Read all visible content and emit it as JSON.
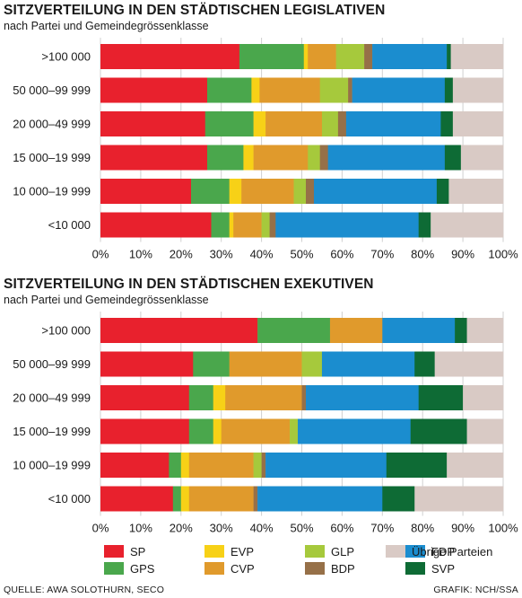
{
  "colors": {
    "SP": "#e8212d",
    "GPS": "#4aa74c",
    "EVP": "#f7d117",
    "CVP": "#e09a2c",
    "GLP": "#a6c93c",
    "BDP": "#967048",
    "FDP": "#1b8dcf",
    "SVP": "#0e6b35",
    "Übrige Parteien": "#d9cac5"
  },
  "legend": {
    "items": [
      {
        "key": "SP",
        "label": "SP"
      },
      {
        "key": "GPS",
        "label": "GPS"
      },
      {
        "key": "EVP",
        "label": "EVP"
      },
      {
        "key": "CVP",
        "label": "CVP"
      },
      {
        "key": "GLP",
        "label": "GLP"
      },
      {
        "key": "BDP",
        "label": "BDP"
      },
      {
        "key": "FDP",
        "label": "FDP"
      },
      {
        "key": "SVP",
        "label": "SVP"
      },
      {
        "key": "Übrige Parteien",
        "label": "Übrige Parteien"
      }
    ]
  },
  "footer": {
    "source": "QUELLE: AWA SOLOTHURN, SECO",
    "credit": "GRAFIK: NCH/SSA"
  },
  "chart_data": [
    {
      "type": "bar",
      "stacked": true,
      "orientation": "horizontal",
      "title": "SITZVERTEILUNG IN DEN STÄDTISCHEN LEGISLATIVEN",
      "subtitle": "nach Partei und Gemeindegrössenklasse",
      "xlim": [
        0,
        100
      ],
      "xticks": [
        "0%",
        "10%",
        "20%",
        "30%",
        "40%",
        "50%",
        "60%",
        "70%",
        "80%",
        "90%",
        "100%"
      ],
      "grid": true,
      "categories": [
        ">100 000",
        "50 000–99 999",
        "20 000–49 999",
        "15 000–19 999",
        "10 000–19 999",
        "<10 000"
      ],
      "series": [
        {
          "name": "SP",
          "values": [
            34.5,
            26.5,
            26.0,
            26.5,
            22.5,
            27.5
          ]
        },
        {
          "name": "GPS",
          "values": [
            16.0,
            11.0,
            12.0,
            9.0,
            9.5,
            4.5
          ]
        },
        {
          "name": "EVP",
          "values": [
            1.0,
            2.0,
            3.0,
            2.5,
            3.0,
            1.0
          ]
        },
        {
          "name": "CVP",
          "values": [
            7.0,
            15.0,
            14.0,
            13.5,
            13.0,
            7.0
          ]
        },
        {
          "name": "GLP",
          "values": [
            7.0,
            7.0,
            4.0,
            3.0,
            3.0,
            2.0
          ]
        },
        {
          "name": "BDP",
          "values": [
            2.0,
            1.0,
            2.0,
            2.0,
            2.0,
            1.5
          ]
        },
        {
          "name": "FDP",
          "values": [
            18.5,
            23.0,
            23.5,
            29.0,
            30.5,
            35.5
          ]
        },
        {
          "name": "SVP",
          "values": [
            1.0,
            2.0,
            3.0,
            4.0,
            3.0,
            3.0
          ]
        },
        {
          "name": "Übrige Parteien",
          "values": [
            13.0,
            12.5,
            12.5,
            10.5,
            13.5,
            18.0
          ]
        }
      ]
    },
    {
      "type": "bar",
      "stacked": true,
      "orientation": "horizontal",
      "title": "SITZVERTEILUNG IN DEN STÄDTISCHEN EXEKUTIVEN",
      "subtitle": "nach Partei und Gemeindegrössenklasse",
      "xlim": [
        0,
        100
      ],
      "xticks": [
        "0%",
        "10%",
        "20%",
        "30%",
        "40%",
        "50%",
        "60%",
        "70%",
        "80%",
        "90%",
        "100%"
      ],
      "grid": true,
      "categories": [
        ">100 000",
        "50 000–99 999",
        "20 000–49 999",
        "15 000–19 999",
        "10 000–19 999",
        "<10 000"
      ],
      "series": [
        {
          "name": "SP",
          "values": [
            39.0,
            23.0,
            22.0,
            22.0,
            17.0,
            18.0
          ]
        },
        {
          "name": "GPS",
          "values": [
            18.0,
            9.0,
            6.0,
            6.0,
            3.0,
            2.0
          ]
        },
        {
          "name": "EVP",
          "values": [
            0,
            0,
            3.0,
            2.0,
            2.0,
            2.0
          ]
        },
        {
          "name": "CVP",
          "values": [
            13.0,
            18.0,
            19.0,
            17.0,
            16.0,
            16.0
          ]
        },
        {
          "name": "GLP",
          "values": [
            0,
            5.0,
            0,
            2.0,
            2.0,
            0
          ]
        },
        {
          "name": "BDP",
          "values": [
            0,
            0,
            1.0,
            0,
            1.0,
            1.0
          ]
        },
        {
          "name": "FDP",
          "values": [
            18.0,
            23.0,
            28.0,
            28.0,
            30.0,
            31.0
          ]
        },
        {
          "name": "SVP",
          "values": [
            3.0,
            5.0,
            11.0,
            14.0,
            15.0,
            8.0
          ]
        },
        {
          "name": "Übrige Parteien",
          "values": [
            9.0,
            17.0,
            10.0,
            9.0,
            14.0,
            22.0
          ]
        }
      ]
    }
  ]
}
